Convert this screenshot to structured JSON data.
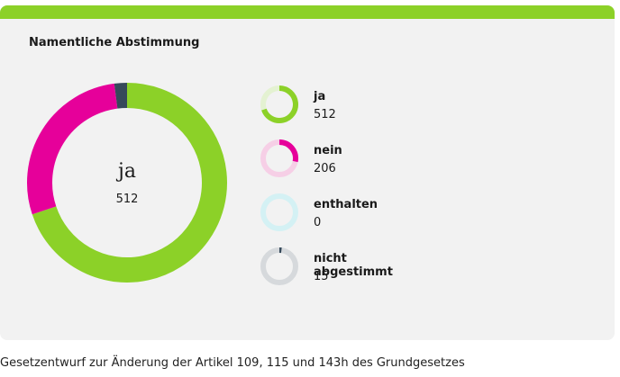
{
  "card": {
    "title": "Namentliche Abstimmung",
    "accent_color": "#8cd128"
  },
  "caption": "Gesetzentwurf zur Änderung der Artikel 109, 115 und 143h des Grundgesetzes",
  "chart_data": {
    "type": "pie",
    "style": "donut",
    "center": {
      "label": "ja",
      "value": "512"
    },
    "slices": [
      {
        "label": "ja",
        "value": 512,
        "color": "#8cd128",
        "track_color": "#e4f2d2"
      },
      {
        "label": "nein",
        "value": 206,
        "color": "#e6009a",
        "track_color": "#f6cfe6"
      },
      {
        "label": "enthalten",
        "value": 0,
        "color": "#4fd3e0",
        "track_color": "#d4f1f4"
      },
      {
        "label": "nicht abgestimmt",
        "value": 15,
        "color": "#36495a",
        "track_color": "#d6d9dc"
      }
    ]
  }
}
